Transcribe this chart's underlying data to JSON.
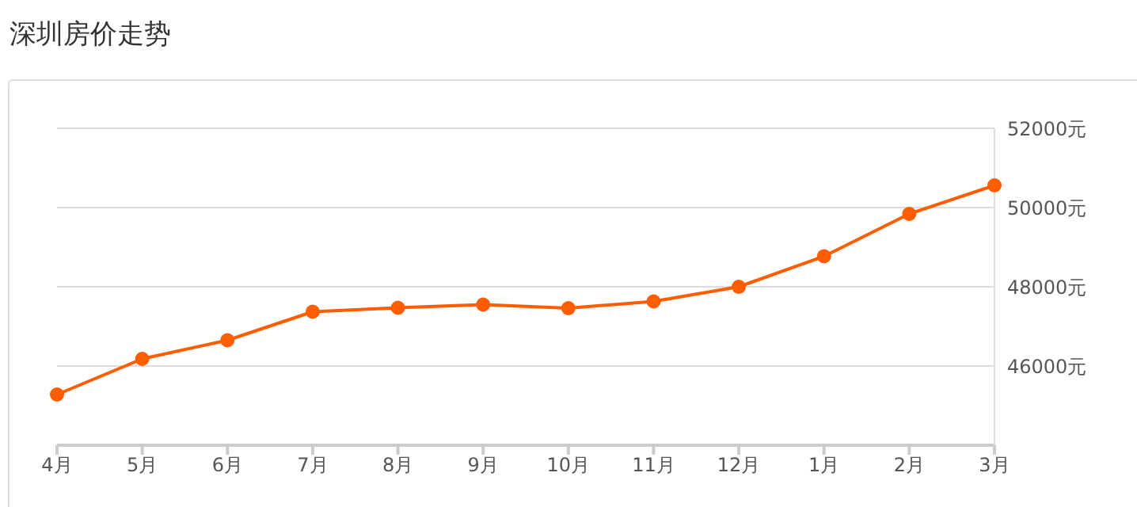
{
  "chart_data": {
    "type": "line",
    "title": "深圳房价走势",
    "categories": [
      "4月",
      "5月",
      "6月",
      "7月",
      "8月",
      "9月",
      "10月",
      "11月",
      "12月",
      "1月",
      "2月",
      "3月"
    ],
    "series": [
      {
        "color": "#ff5d00",
        "values": [
          45280,
          46180,
          46650,
          47370,
          47470,
          47550,
          47460,
          47630,
          48000,
          48770,
          49840,
          50560
        ]
      }
    ],
    "ylim": [
      44000,
      52000
    ],
    "yticks": [
      {
        "value": 46000,
        "label": "46000元"
      },
      {
        "value": 48000,
        "label": "48000元"
      },
      {
        "value": 50000,
        "label": "50000元"
      },
      {
        "value": 52000,
        "label": "52000元"
      }
    ],
    "grid": "y",
    "legend": false,
    "marker": "circle",
    "line_style": "solid"
  }
}
